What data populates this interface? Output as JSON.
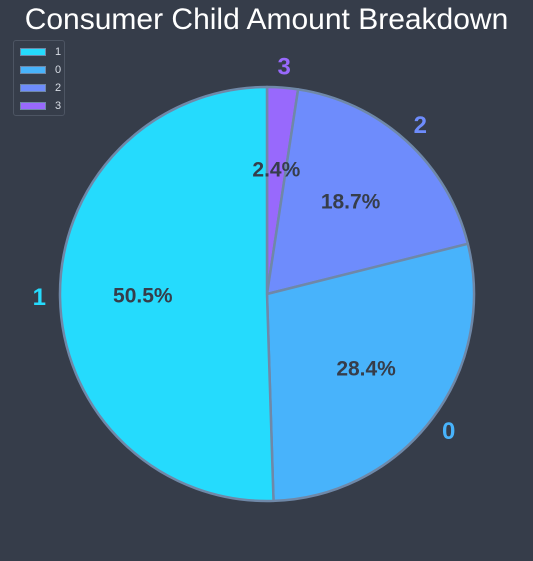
{
  "chart_data": {
    "type": "pie",
    "title": "Consumer Child Amount Breakdown",
    "start_angle": "top, clockwise from 12 o'clock for slice '3'",
    "slices": [
      {
        "label": "1",
        "value": 50.5,
        "pct_text": "50.5%",
        "color": "#25dbfd"
      },
      {
        "label": "0",
        "value": 28.4,
        "pct_text": "28.4%",
        "color": "#48b3fb"
      },
      {
        "label": "2",
        "value": 18.7,
        "pct_text": "18.7%",
        "color": "#6e8cfc"
      },
      {
        "label": "3",
        "value": 2.4,
        "pct_text": "2.4%",
        "color": "#9869fc"
      }
    ],
    "slice_edge_color": "#6f88a8",
    "legend": {
      "placement": "top-left",
      "entries": [
        "1",
        "0",
        "2",
        "3"
      ]
    }
  }
}
